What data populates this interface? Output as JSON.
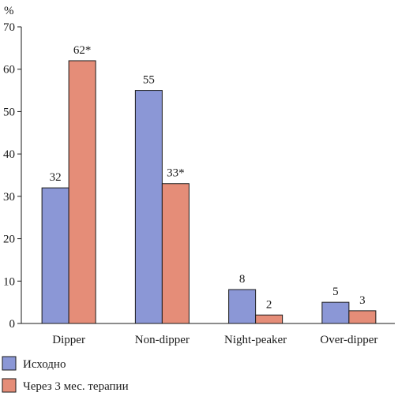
{
  "chart_data": {
    "type": "bar",
    "ylabel": "%",
    "ylim": [
      0,
      70
    ],
    "yticks": [
      0,
      10,
      20,
      30,
      40,
      50,
      60,
      70
    ],
    "categories": [
      "Dipper",
      "Non-dipper",
      "Night-peaker",
      "Over-dipper"
    ],
    "series": [
      {
        "name": "Исходно",
        "color": "#8b97d6",
        "values": [
          32,
          55,
          8,
          5
        ],
        "labels": [
          "32",
          "55",
          "8",
          "5"
        ]
      },
      {
        "name": "Через 3 мес. терапии",
        "color": "#e58d78",
        "values": [
          62,
          33,
          2,
          3
        ],
        "labels": [
          "62*",
          "33*",
          "2",
          "3"
        ]
      }
    ],
    "grid": false,
    "legend_position": "bottom-left"
  }
}
